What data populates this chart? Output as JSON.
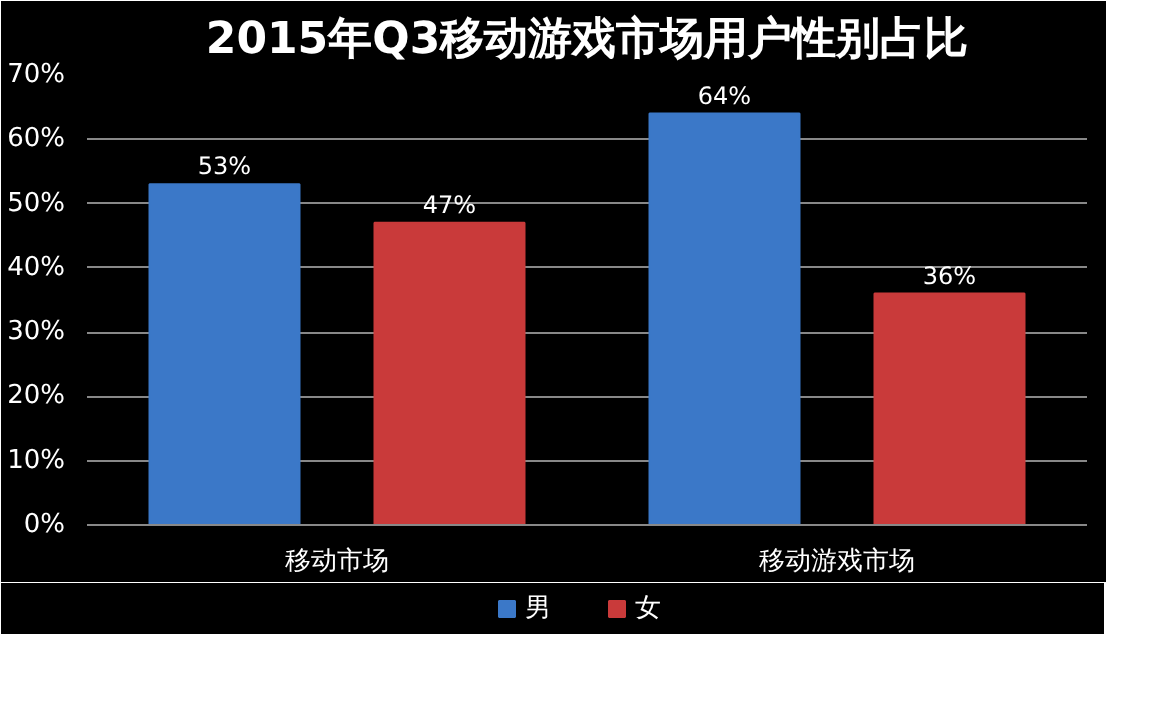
{
  "chart_data": {
    "type": "bar",
    "title": "2015年Q3移动游戏市场用户性别占比",
    "categories": [
      "移动市场",
      "移动游戏市场"
    ],
    "series": [
      {
        "name": "男",
        "color": "#3b78c8",
        "values": [
          53,
          64
        ],
        "value_labels": [
          "53%",
          "64%"
        ]
      },
      {
        "name": "女",
        "color": "#c93a3a",
        "values": [
          47,
          36
        ],
        "value_labels": [
          "47%",
          "36%"
        ]
      }
    ],
    "ylim": [
      0,
      70
    ],
    "yticks": [
      {
        "value": 0,
        "label": "0%"
      },
      {
        "value": 10,
        "label": "10%"
      },
      {
        "value": 20,
        "label": "20%"
      },
      {
        "value": 30,
        "label": "30%"
      },
      {
        "value": 40,
        "label": "40%"
      },
      {
        "value": 50,
        "label": "50%"
      },
      {
        "value": 60,
        "label": "60%"
      },
      {
        "value": 70,
        "label": "70%"
      }
    ],
    "grid": "y",
    "legend": "bottom"
  }
}
